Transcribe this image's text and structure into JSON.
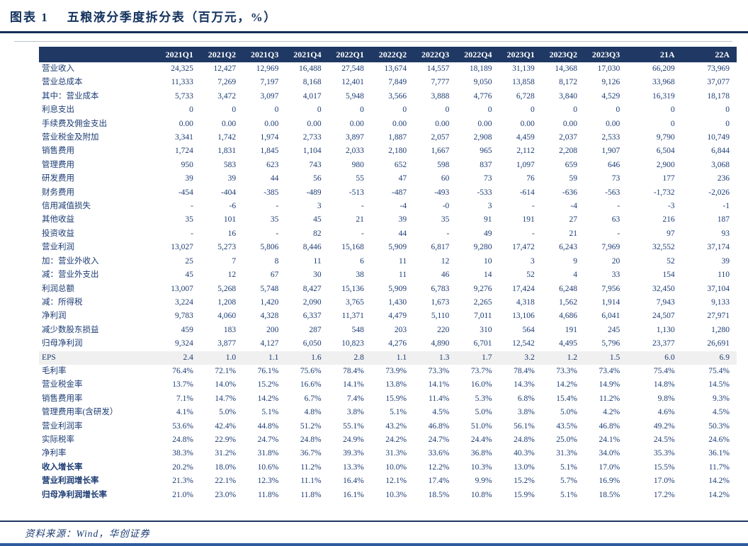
{
  "figure": {
    "label": "图表 1",
    "title": "五粮液分季度拆分表（百万元，%）",
    "source": "资料来源：Wind，华创证券"
  },
  "colors": {
    "header_bg": "#1f3864",
    "body_text": "#1c3c74",
    "title_text": "#14335e",
    "eps_row_bg": "#f0f0f0",
    "bottom_bar": "#2e5aa0"
  },
  "chart_data": {
    "type": "table",
    "columns": [
      "2021Q1",
      "2021Q2",
      "2021Q3",
      "2021Q4",
      "2022Q1",
      "2022Q2",
      "2022Q3",
      "2022Q4",
      "2023Q1",
      "2023Q2",
      "2023Q3",
      "21A",
      "22A"
    ],
    "rows": [
      {
        "label": "营业收入",
        "bold": false,
        "shaded": false,
        "values": [
          "24,325",
          "12,427",
          "12,969",
          "16,488",
          "27,548",
          "13,674",
          "14,557",
          "18,189",
          "31,139",
          "14,368",
          "17,030",
          "66,209",
          "73,969"
        ]
      },
      {
        "label": "营业总成本",
        "bold": false,
        "shaded": false,
        "values": [
          "11,333",
          "7,269",
          "7,197",
          "8,168",
          "12,401",
          "7,849",
          "7,777",
          "9,050",
          "13,858",
          "8,172",
          "9,126",
          "33,968",
          "37,077"
        ]
      },
      {
        "label": "其中：营业成本",
        "bold": false,
        "shaded": false,
        "values": [
          "5,733",
          "3,472",
          "3,097",
          "4,017",
          "5,948",
          "3,566",
          "3,888",
          "4,776",
          "6,728",
          "3,840",
          "4,529",
          "16,319",
          "18,178"
        ]
      },
      {
        "label": "利息支出",
        "bold": false,
        "shaded": false,
        "values": [
          "0",
          "0",
          "0",
          "0",
          "0",
          "0",
          "0",
          "0",
          "0",
          "0",
          "0",
          "0",
          "0"
        ]
      },
      {
        "label": "手续费及佣金支出",
        "bold": false,
        "shaded": false,
        "values": [
          "0.00",
          "0.00",
          "0.00",
          "0.00",
          "0.00",
          "0.00",
          "0.00",
          "0.00",
          "0.00",
          "0.00",
          "0.00",
          "0",
          "0"
        ]
      },
      {
        "label": "营业税金及附加",
        "bold": false,
        "shaded": false,
        "values": [
          "3,341",
          "1,742",
          "1,974",
          "2,733",
          "3,897",
          "1,887",
          "2,057",
          "2,908",
          "4,459",
          "2,037",
          "2,533",
          "9,790",
          "10,749"
        ]
      },
      {
        "label": "销售费用",
        "bold": false,
        "shaded": false,
        "values": [
          "1,724",
          "1,831",
          "1,845",
          "1,104",
          "2,033",
          "2,180",
          "1,667",
          "965",
          "2,112",
          "2,208",
          "1,907",
          "6,504",
          "6,844"
        ]
      },
      {
        "label": "管理费用",
        "bold": false,
        "shaded": false,
        "values": [
          "950",
          "583",
          "623",
          "743",
          "980",
          "652",
          "598",
          "837",
          "1,097",
          "659",
          "646",
          "2,900",
          "3,068"
        ]
      },
      {
        "label": "研发费用",
        "bold": false,
        "shaded": false,
        "values": [
          "39",
          "39",
          "44",
          "56",
          "55",
          "47",
          "60",
          "73",
          "76",
          "59",
          "73",
          "177",
          "236"
        ]
      },
      {
        "label": "财务费用",
        "bold": false,
        "shaded": false,
        "values": [
          "-454",
          "-404",
          "-385",
          "-489",
          "-513",
          "-487",
          "-493",
          "-533",
          "-614",
          "-636",
          "-563",
          "-1,732",
          "-2,026"
        ]
      },
      {
        "label": "信用减值损失",
        "bold": false,
        "shaded": false,
        "values": [
          "-",
          "-6",
          "-",
          "3",
          "-",
          "-4",
          "-0",
          "3",
          "-",
          "-4",
          "-",
          "-3",
          "-1"
        ]
      },
      {
        "label": "其他收益",
        "bold": false,
        "shaded": false,
        "values": [
          "35",
          "101",
          "35",
          "45",
          "21",
          "39",
          "35",
          "91",
          "191",
          "27",
          "63",
          "216",
          "187"
        ]
      },
      {
        "label": "投资收益",
        "bold": false,
        "shaded": false,
        "values": [
          "-",
          "16",
          "-",
          "82",
          "-",
          "44",
          "-",
          "49",
          "-",
          "21",
          "-",
          "97",
          "93"
        ]
      },
      {
        "label": "营业利润",
        "bold": false,
        "shaded": false,
        "values": [
          "13,027",
          "5,273",
          "5,806",
          "8,446",
          "15,168",
          "5,909",
          "6,817",
          "9,280",
          "17,472",
          "6,243",
          "7,969",
          "32,552",
          "37,174"
        ]
      },
      {
        "label": "加：营业外收入",
        "bold": false,
        "shaded": false,
        "values": [
          "25",
          "7",
          "8",
          "11",
          "6",
          "11",
          "12",
          "10",
          "3",
          "9",
          "20",
          "52",
          "39"
        ]
      },
      {
        "label": "减：营业外支出",
        "bold": false,
        "shaded": false,
        "values": [
          "45",
          "12",
          "67",
          "30",
          "38",
          "11",
          "46",
          "14",
          "52",
          "4",
          "33",
          "154",
          "110"
        ]
      },
      {
        "label": "利润总额",
        "bold": false,
        "shaded": false,
        "values": [
          "13,007",
          "5,268",
          "5,748",
          "8,427",
          "15,136",
          "5,909",
          "6,783",
          "9,276",
          "17,424",
          "6,248",
          "7,956",
          "32,450",
          "37,104"
        ]
      },
      {
        "label": "减：所得税",
        "bold": false,
        "shaded": false,
        "values": [
          "3,224",
          "1,208",
          "1,420",
          "2,090",
          "3,765",
          "1,430",
          "1,673",
          "2,265",
          "4,318",
          "1,562",
          "1,914",
          "7,943",
          "9,133"
        ]
      },
      {
        "label": "净利润",
        "bold": false,
        "shaded": false,
        "values": [
          "9,783",
          "4,060",
          "4,328",
          "6,337",
          "11,371",
          "4,479",
          "5,110",
          "7,011",
          "13,106",
          "4,686",
          "6,041",
          "24,507",
          "27,971"
        ]
      },
      {
        "label": "减少数股东损益",
        "bold": false,
        "shaded": false,
        "values": [
          "459",
          "183",
          "200",
          "287",
          "548",
          "203",
          "220",
          "310",
          "564",
          "191",
          "245",
          "1,130",
          "1,280"
        ]
      },
      {
        "label": "归母净利润",
        "bold": false,
        "shaded": false,
        "values": [
          "9,324",
          "3,877",
          "4,127",
          "6,050",
          "10,823",
          "4,276",
          "4,890",
          "6,701",
          "12,542",
          "4,495",
          "5,796",
          "23,377",
          "26,691"
        ]
      },
      {
        "label": "EPS",
        "bold": false,
        "shaded": true,
        "values": [
          "2.4",
          "1.0",
          "1.1",
          "1.6",
          "2.8",
          "1.1",
          "1.3",
          "1.7",
          "3.2",
          "1.2",
          "1.5",
          "6.0",
          "6.9"
        ]
      },
      {
        "label": "毛利率",
        "bold": false,
        "shaded": false,
        "values": [
          "76.4%",
          "72.1%",
          "76.1%",
          "75.6%",
          "78.4%",
          "73.9%",
          "73.3%",
          "73.7%",
          "78.4%",
          "73.3%",
          "73.4%",
          "75.4%",
          "75.4%"
        ]
      },
      {
        "label": "营业税金率",
        "bold": false,
        "shaded": false,
        "values": [
          "13.7%",
          "14.0%",
          "15.2%",
          "16.6%",
          "14.1%",
          "13.8%",
          "14.1%",
          "16.0%",
          "14.3%",
          "14.2%",
          "14.9%",
          "14.8%",
          "14.5%"
        ]
      },
      {
        "label": "销售费用率",
        "bold": false,
        "shaded": false,
        "values": [
          "7.1%",
          "14.7%",
          "14.2%",
          "6.7%",
          "7.4%",
          "15.9%",
          "11.4%",
          "5.3%",
          "6.8%",
          "15.4%",
          "11.2%",
          "9.8%",
          "9.3%"
        ]
      },
      {
        "label": "管理费用率(含研发）",
        "bold": false,
        "shaded": false,
        "values": [
          "4.1%",
          "5.0%",
          "5.1%",
          "4.8%",
          "3.8%",
          "5.1%",
          "4.5%",
          "5.0%",
          "3.8%",
          "5.0%",
          "4.2%",
          "4.6%",
          "4.5%"
        ]
      },
      {
        "label": "营业利润率",
        "bold": false,
        "shaded": false,
        "values": [
          "53.6%",
          "42.4%",
          "44.8%",
          "51.2%",
          "55.1%",
          "43.2%",
          "46.8%",
          "51.0%",
          "56.1%",
          "43.5%",
          "46.8%",
          "49.2%",
          "50.3%"
        ]
      },
      {
        "label": "实际税率",
        "bold": false,
        "shaded": false,
        "values": [
          "24.8%",
          "22.9%",
          "24.7%",
          "24.8%",
          "24.9%",
          "24.2%",
          "24.7%",
          "24.4%",
          "24.8%",
          "25.0%",
          "24.1%",
          "24.5%",
          "24.6%"
        ]
      },
      {
        "label": "净利率",
        "bold": false,
        "shaded": false,
        "values": [
          "38.3%",
          "31.2%",
          "31.8%",
          "36.7%",
          "39.3%",
          "31.3%",
          "33.6%",
          "36.8%",
          "40.3%",
          "31.3%",
          "34.0%",
          "35.3%",
          "36.1%"
        ]
      },
      {
        "label": "收入增长率",
        "bold": true,
        "shaded": false,
        "values": [
          "20.2%",
          "18.0%",
          "10.6%",
          "11.2%",
          "13.3%",
          "10.0%",
          "12.2%",
          "10.3%",
          "13.0%",
          "5.1%",
          "17.0%",
          "15.5%",
          "11.7%"
        ]
      },
      {
        "label": "营业利润增长率",
        "bold": true,
        "shaded": false,
        "values": [
          "21.3%",
          "22.1%",
          "12.3%",
          "11.1%",
          "16.4%",
          "12.1%",
          "17.4%",
          "9.9%",
          "15.2%",
          "5.7%",
          "16.9%",
          "17.0%",
          "14.2%"
        ]
      },
      {
        "label": "归母净利润增长率",
        "bold": true,
        "shaded": false,
        "values": [
          "21.0%",
          "23.0%",
          "11.8%",
          "11.8%",
          "16.1%",
          "10.3%",
          "18.5%",
          "10.8%",
          "15.9%",
          "5.1%",
          "18.5%",
          "17.2%",
          "14.2%"
        ]
      }
    ]
  }
}
